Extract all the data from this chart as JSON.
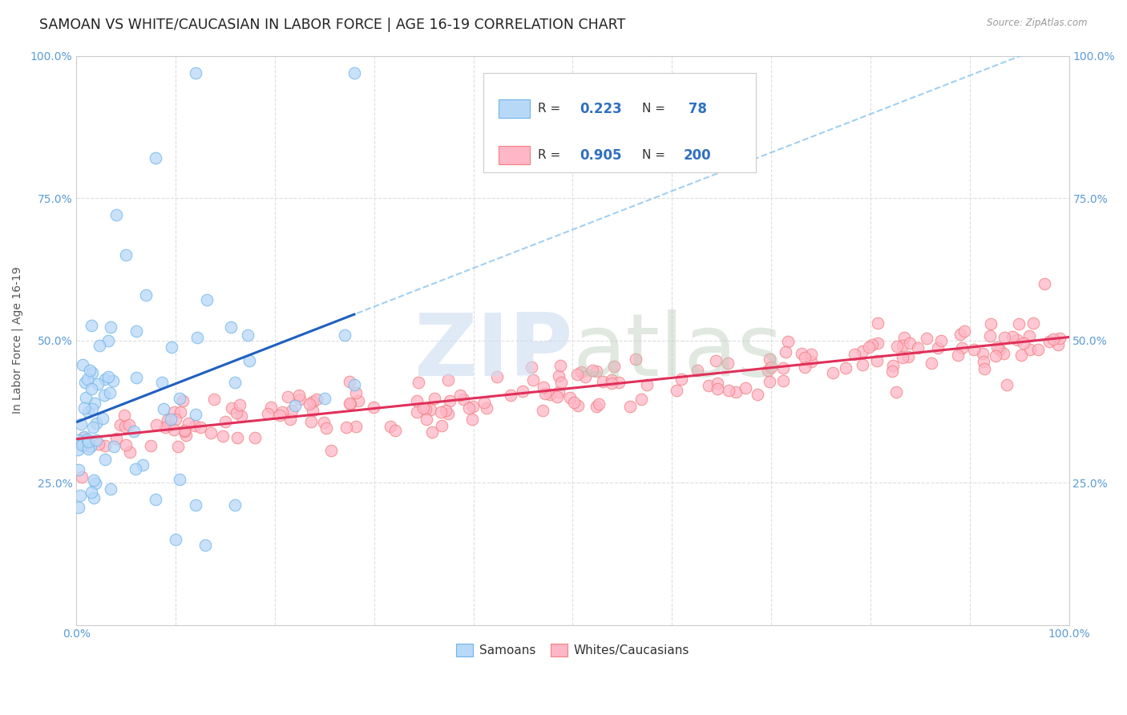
{
  "title": "SAMOAN VS WHITE/CAUCASIAN IN LABOR FORCE | AGE 16-19 CORRELATION CHART",
  "source": "Source: ZipAtlas.com",
  "ylabel": "In Labor Force | Age 16-19",
  "xlim": [
    0.0,
    1.0
  ],
  "ylim": [
    0.0,
    1.0
  ],
  "samoan_R": 0.223,
  "samoan_N": 78,
  "white_R": 0.905,
  "white_N": 200,
  "samoan_dot_face": "#B8D8F8",
  "samoan_dot_edge": "#6EB4E8",
  "white_dot_face": "#FFB6C6",
  "white_dot_edge": "#F08080",
  "trend_blue_solid": "#2060C0",
  "trend_pink_solid": "#E0305A",
  "trend_blue_dashed": "#90C8F0",
  "legend_label_samoan": "Samoans",
  "legend_label_white": "Whites/Caucasians",
  "background_color": "#FFFFFF",
  "grid_color": "#DDDDDD",
  "title_color": "#222222",
  "source_color": "#999999",
  "tick_color": "#5B9BD5",
  "ylabel_color": "#555555",
  "title_fontsize": 12.5,
  "tick_fontsize": 10,
  "legend_fontsize": 12,
  "ylabel_fontsize": 10,
  "watermark_zip_color": "#CCDDF0",
  "watermark_atlas_color": "#BBCCBB"
}
